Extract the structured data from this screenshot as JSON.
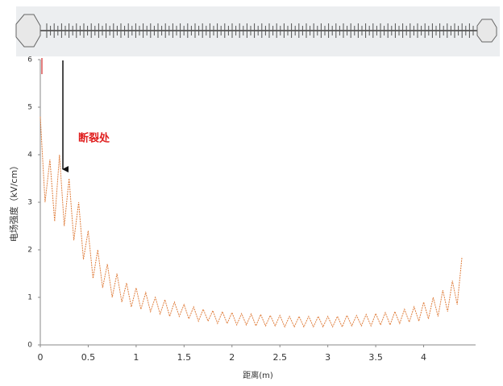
{
  "chart_data": {
    "type": "line",
    "xlabel": "距离(m)",
    "ylabel": "电场强度（kV/cm）",
    "annotation": "断裂处",
    "x": [
      0,
      0.05,
      0.1,
      0.15,
      0.2,
      0.25,
      0.3,
      0.35,
      0.4,
      0.45,
      0.5,
      0.55,
      0.6,
      0.65,
      0.7,
      0.75,
      0.8,
      0.85,
      0.9,
      0.95,
      1,
      1.05,
      1.1,
      1.15,
      1.2,
      1.25,
      1.3,
      1.35,
      1.4,
      1.45,
      1.5,
      1.55,
      1.6,
      1.65,
      1.7,
      1.75,
      1.8,
      1.85,
      1.9,
      1.95,
      2,
      2.05,
      2.1,
      2.15,
      2.2,
      2.25,
      2.3,
      2.35,
      2.4,
      2.45,
      2.5,
      2.55,
      2.6,
      2.65,
      2.7,
      2.75,
      2.8,
      2.85,
      2.9,
      2.95,
      3,
      3.05,
      3.1,
      3.15,
      3.2,
      3.25,
      3.3,
      3.35,
      3.4,
      3.45,
      3.5,
      3.55,
      3.6,
      3.65,
      3.7,
      3.75,
      3.8,
      3.85,
      3.9,
      3.95,
      4,
      4.05,
      4.1,
      4.15,
      4.2,
      4.25,
      4.3,
      4.35,
      4.4
    ],
    "values": [
      4.8,
      3.0,
      3.9,
      2.6,
      4.0,
      2.5,
      3.5,
      2.2,
      3.0,
      1.8,
      2.4,
      1.4,
      2.0,
      1.2,
      1.7,
      1.0,
      1.5,
      0.9,
      1.3,
      0.8,
      1.2,
      0.75,
      1.1,
      0.7,
      1.0,
      0.65,
      0.95,
      0.6,
      0.9,
      0.6,
      0.85,
      0.55,
      0.8,
      0.5,
      0.75,
      0.5,
      0.72,
      0.45,
      0.7,
      0.45,
      0.68,
      0.42,
      0.66,
      0.42,
      0.65,
      0.4,
      0.64,
      0.4,
      0.62,
      0.4,
      0.62,
      0.38,
      0.6,
      0.38,
      0.6,
      0.38,
      0.6,
      0.38,
      0.6,
      0.38,
      0.6,
      0.38,
      0.6,
      0.38,
      0.62,
      0.4,
      0.62,
      0.4,
      0.64,
      0.4,
      0.66,
      0.42,
      0.68,
      0.42,
      0.7,
      0.45,
      0.75,
      0.48,
      0.8,
      0.5,
      0.9,
      0.55,
      1.0,
      0.6,
      1.15,
      0.7,
      1.35,
      0.85,
      1.85
    ],
    "color": "#e08040",
    "xlim": [
      0,
      4.5
    ],
    "ylim": [
      0,
      6
    ],
    "xticks": [
      0,
      0.5,
      1,
      1.5,
      2,
      2.5,
      3,
      3.5,
      4
    ],
    "yticks": [
      0,
      1,
      2,
      3,
      4,
      5,
      6
    ],
    "grid": false
  }
}
